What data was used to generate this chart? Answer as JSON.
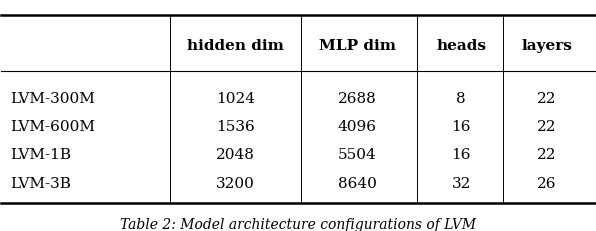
{
  "caption": "Table 2: Model architecture configurations of LVM",
  "col_headers": [
    "",
    "hidden dim",
    "MLP dim",
    "heads",
    "layers"
  ],
  "rows": [
    [
      "LVM-300M",
      "1024",
      "2688",
      "8",
      "22"
    ],
    [
      "LVM-600M",
      "1536",
      "4096",
      "16",
      "22"
    ],
    [
      "LVM-1B",
      "2048",
      "5504",
      "16",
      "22"
    ],
    [
      "LVM-3B",
      "3200",
      "8640",
      "32",
      "26"
    ]
  ],
  "header_bold": [
    false,
    true,
    true,
    true,
    true
  ],
  "background_color": "#ffffff",
  "text_color": "#000000",
  "font_size": 11,
  "caption_font_size": 10
}
